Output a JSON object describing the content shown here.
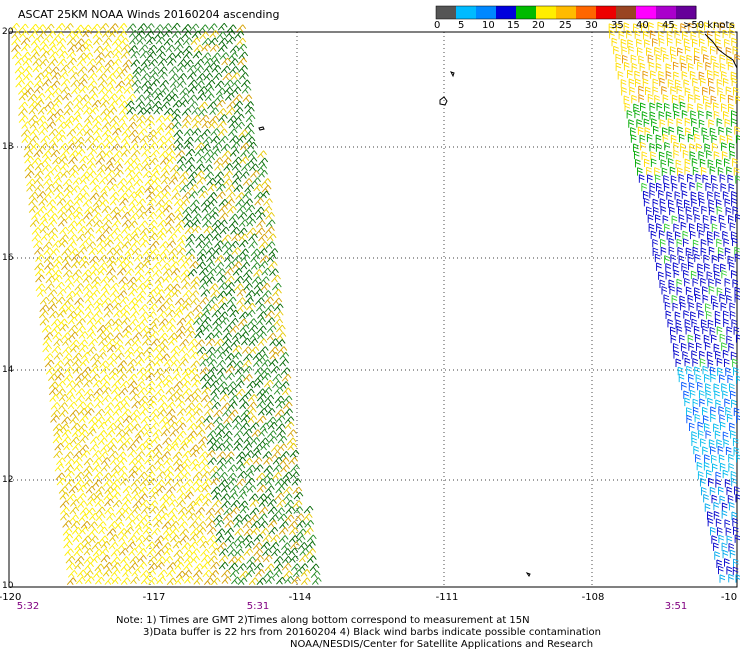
{
  "title": "ASCAT 25KM NOAA Winds 20160204 ascending",
  "colorbar": {
    "ticks": [
      "0",
      "5",
      "10",
      "15",
      "20",
      "25",
      "30",
      "35",
      "40",
      "45",
      ">50 knots"
    ],
    "colors": [
      "#555555",
      "#00bbff",
      "#0088ff",
      "#0000dd",
      "#00bb00",
      "#ffee00",
      "#ffbb00",
      "#ff6600",
      "#ee0000",
      "#994422",
      "#ff00ff",
      "#aa00cc",
      "#660099"
    ]
  },
  "lat_labels": [
    "20",
    "18",
    "16",
    "14",
    "12",
    "10"
  ],
  "lon_labels": [
    "-120",
    "-117",
    "-114",
    "-111",
    "-108",
    "-10"
  ],
  "time_labels": [
    "5:32",
    "5:31",
    "3:51"
  ],
  "note": {
    "line1": "Note: 1) Times are GMT 2)Times along bottom correspond to measurement at 15N",
    "line2": "3)Data buffer is 22 hrs from 20160204 4) Black wind barbs indicate possible contamination",
    "line3": "NOAA/NESDIS/Center for Satellite Applications and Research"
  }
}
